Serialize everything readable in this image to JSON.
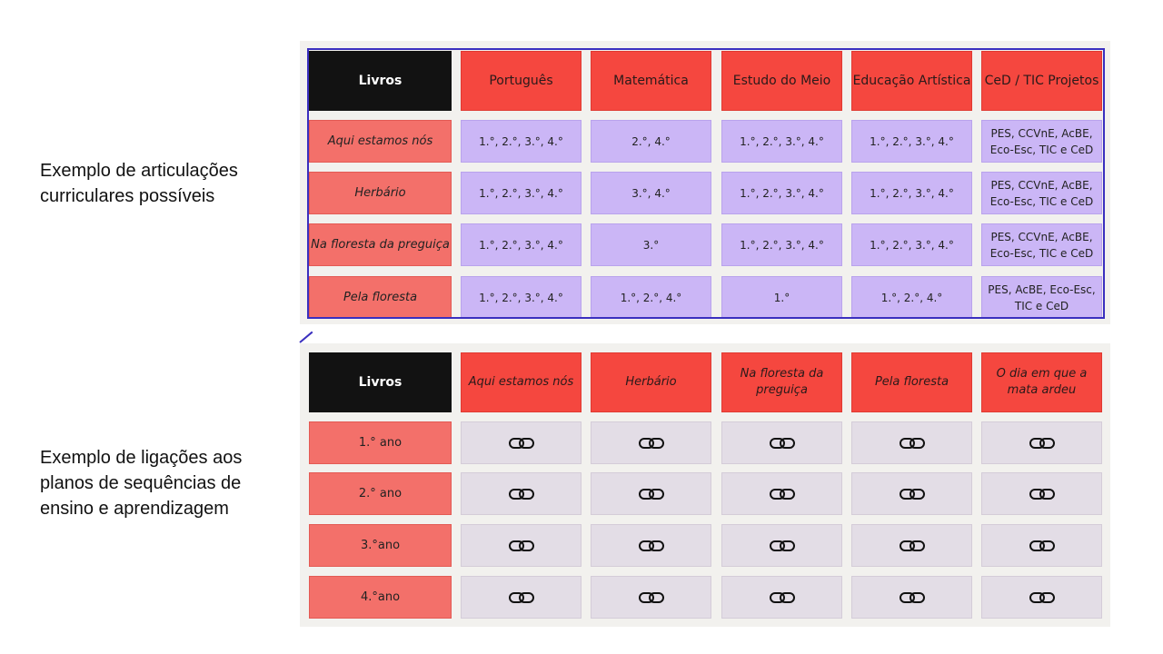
{
  "captions": {
    "top": "Exemplo de articulações curriculares possíveis",
    "bottom": "Exemplo de ligações aos planos de sequências de ensino e aprendizagem"
  },
  "table1": {
    "corner": "Livros",
    "headers": [
      "Português",
      "Matemática",
      "Estudo do Meio",
      "Educação Artística",
      "CeD / TIC Projetos"
    ],
    "rows": [
      {
        "label": "Aqui estamos nós",
        "cells": [
          "1.°, 2.°, 3.°, 4.°",
          "2.°, 4.°",
          "1.°, 2.°, 3.°, 4.°",
          "1.°, 2.°, 3.°, 4.°",
          "PES, CCVnE, AcBE, Eco-Esc, TIC e CeD"
        ]
      },
      {
        "label": "Herbário",
        "cells": [
          "1.°, 2.°, 3.°, 4.°",
          "3.°, 4.°",
          "1.°, 2.°, 3.°, 4.°",
          "1.°, 2.°, 3.°, 4.°",
          "PES, CCVnE, AcBE, Eco-Esc, TIC e CeD"
        ]
      },
      {
        "label": "Na floresta da preguiça",
        "cells": [
          "1.°, 2.°, 3.°, 4.°",
          "3.°",
          "1.°, 2.°, 3.°, 4.°",
          "1.°, 2.°, 3.°, 4.°",
          "PES, CCVnE, AcBE, Eco-Esc, TIC e CeD"
        ]
      },
      {
        "label": "Pela floresta",
        "cells": [
          "1.°, 2.°, 3.°, 4.°",
          "1.°, 2.°, 4.°",
          "1.°",
          "1.°, 2.°, 4.°",
          "PES, AcBE, Eco-Esc, TIC e CeD"
        ]
      }
    ]
  },
  "table2": {
    "corner": "Livros",
    "headers": [
      "Aqui estamos nós",
      "Herbário",
      "Na floresta da preguiça",
      "Pela floresta",
      "O dia em que a mata ardeu"
    ],
    "rows": [
      {
        "label": "1.° ano"
      },
      {
        "label": "2.° ano"
      },
      {
        "label": "3.°ano"
      },
      {
        "label": "4.°ano"
      }
    ],
    "cell_icon": "link-icon"
  },
  "colors": {
    "header_black": "#121212",
    "header_red": "#f5473f",
    "row_red": "#f3706a",
    "cell_purple": "#cbb6f6",
    "cell_grey": "#e3dde6",
    "frame_blue": "#3a2fbf"
  }
}
